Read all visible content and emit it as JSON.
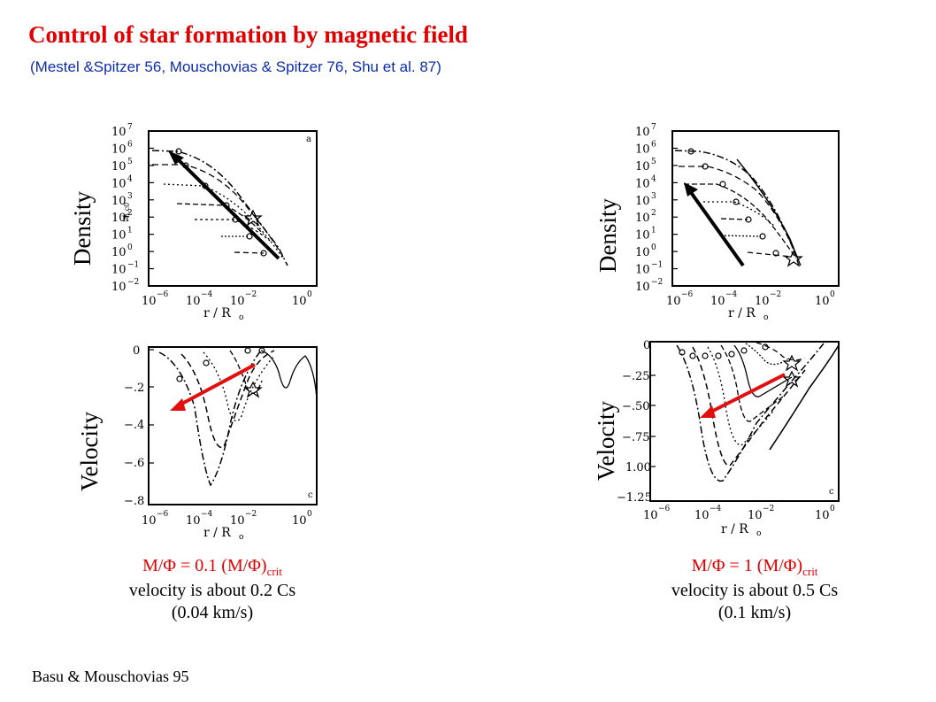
{
  "header": {
    "title": "Control of star formation by magnetic field",
    "subtitle": "(Mestel &Spitzer 56, Mouschovias & Spitzer 76, Shu et al. 87)"
  },
  "left": {
    "density_label": "Density",
    "velocity_label": "Velocity",
    "ratio_prefix": "M/Φ = 0.1 (M/Φ)",
    "ratio_sub": "crit",
    "line1": "velocity is about 0.2 Cs",
    "line2": "(0.04 km/s)"
  },
  "right": {
    "density_label": "Density",
    "velocity_label": "Velocity",
    "ratio_prefix": "M/Φ = 1 (M/Φ)",
    "ratio_sub": "crit",
    "line1": "velocity is about  0.5 Cs",
    "line2": "(0.1 km/s)"
  },
  "plots": {
    "density_yticks": [
      "10",
      "10",
      "10",
      "10",
      "10",
      "10",
      "10",
      "10",
      "10",
      "10"
    ],
    "density_yexps": [
      "7",
      "6",
      "5",
      "4",
      "3",
      "2",
      "1",
      "0",
      "−1",
      "−2"
    ],
    "ylabel_density": "n",
    "ylabel_density_sub": "n,c0",
    "xlabel_r": "r / R",
    "xlabel_sub": "o",
    "xticks": [
      "10",
      "10",
      "10",
      "10"
    ],
    "xexps": [
      "−6",
      "−4",
      "−2",
      "0"
    ],
    "vel_left_ticks": [
      "0",
      "−.2",
      "−.4",
      "−.6",
      "−.8"
    ],
    "vel_right_ticks": [
      "0",
      "−.25",
      "−.50",
      "−.75",
      "1.00",
      "−1.25"
    ],
    "panel_a": "a",
    "panel_c": "c"
  },
  "colors": {
    "title": "#e00000",
    "subtitle": "#0d2ea8",
    "arrow_red": "#e01010",
    "arrow_black": "#000000"
  },
  "footer": {
    "reference": "Basu & Mouschovias 95"
  }
}
